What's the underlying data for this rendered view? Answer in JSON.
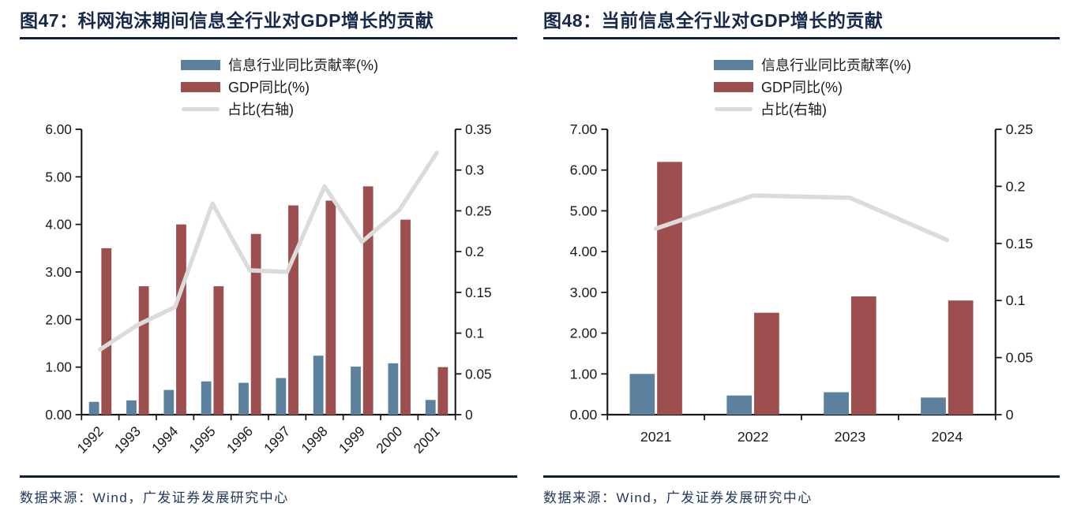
{
  "colors": {
    "bar_blue": "#5C81 9E",
    "accent_blue_bar": "#5C819E",
    "accent_red_bar": "#9D4E4E",
    "accent_gray_line": "#DBDBDB",
    "title_navy": "#16294C",
    "rule_navy": "#0E1E3C",
    "axis_black": "#1a1a1a"
  },
  "chart_data": [
    {
      "type": "combo_bar_line",
      "title": "图47：科网泡沫期间信息全行业对GDP增长的贡献",
      "categories": [
        "1992",
        "1993",
        "1994",
        "1995",
        "1996",
        "1997",
        "1998",
        "1999",
        "2000",
        "2001"
      ],
      "series": [
        {
          "name": "信息行业同比贡献率(%)",
          "type": "bar",
          "axis": "left",
          "color": "#5C819E",
          "values": [
            0.27,
            0.3,
            0.52,
            0.7,
            0.67,
            0.77,
            1.24,
            1.01,
            1.08,
            0.31
          ]
        },
        {
          "name": "GDP同比(%)",
          "type": "bar",
          "axis": "left",
          "color": "#9D4E4E",
          "values": [
            3.5,
            2.7,
            4.0,
            2.7,
            3.8,
            4.4,
            4.5,
            4.8,
            4.1,
            1.0
          ]
        },
        {
          "name": "占比(右轴)",
          "type": "line",
          "axis": "right",
          "color": "#DBDBDB",
          "values": [
            0.08,
            0.11,
            0.132,
            0.259,
            0.177,
            0.175,
            0.28,
            0.212,
            0.251,
            0.321
          ]
        }
      ],
      "y_left": {
        "min": 0,
        "max": 6,
        "ticks": [
          "6.00",
          "5.00",
          "4.00",
          "3.00",
          "2.00",
          "1.00",
          "0.00"
        ]
      },
      "y_right": {
        "min": 0,
        "max": 0.35,
        "ticks": [
          "0.35",
          "0.3",
          "0.25",
          "0.2",
          "0.15",
          "0.1",
          "0.05",
          "0"
        ]
      },
      "x_label_rotated": true,
      "legend_position": "top",
      "grid": false,
      "source": "数据来源：Wind，广发证券发展研究中心"
    },
    {
      "type": "combo_bar_line",
      "title": "图48：当前信息全行业对GDP增长的贡献",
      "categories": [
        "2021",
        "2022",
        "2023",
        "2024"
      ],
      "series": [
        {
          "name": "信息行业同比贡献率(%)",
          "type": "bar",
          "axis": "left",
          "color": "#5C819E",
          "values": [
            1.0,
            0.47,
            0.55,
            0.42
          ]
        },
        {
          "name": "GDP同比(%)",
          "type": "bar",
          "axis": "left",
          "color": "#9D4E4E",
          "values": [
            6.2,
            2.5,
            2.9,
            2.8
          ]
        },
        {
          "name": "占比(右轴)",
          "type": "line",
          "axis": "right",
          "color": "#DBDBDB",
          "values": [
            0.163,
            0.192,
            0.19,
            0.153
          ]
        }
      ],
      "y_left": {
        "min": 0,
        "max": 7,
        "ticks": [
          "7.00",
          "6.00",
          "5.00",
          "4.00",
          "3.00",
          "2.00",
          "1.00",
          "0.00"
        ]
      },
      "y_right": {
        "min": 0,
        "max": 0.25,
        "ticks": [
          "0.25",
          "0.2",
          "0.15",
          "0.1",
          "0.05",
          "0"
        ]
      },
      "x_label_rotated": false,
      "legend_position": "top",
      "grid": false,
      "source": "数据来源：Wind，广发证券发展研究中心"
    }
  ]
}
